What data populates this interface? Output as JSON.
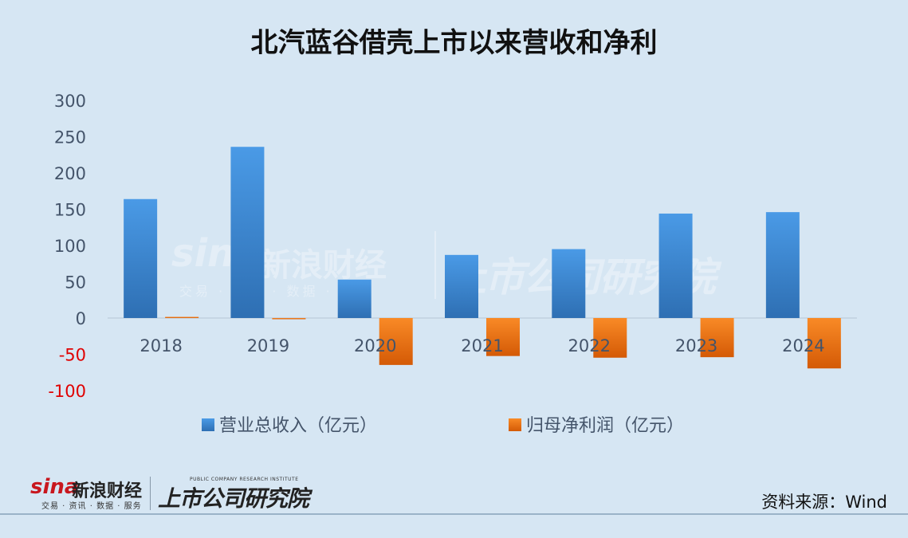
{
  "title": "北汽蓝谷借壳上市以来营收和净利",
  "source_label": "资料来源：Wind",
  "logos": {
    "sina_word": "sina",
    "sina_cn": "新浪财经",
    "sina_sub": "交易 · 资讯 · 数据 · 服务",
    "ssgs_en": "PUBLIC COMPANY RESEARCH INSTITUTE",
    "ssgs_cn": "上市公司研究院"
  },
  "colors": {
    "revenue": "#3f8fd8",
    "profit": "#f07a18",
    "negative_tick": "#e00000",
    "axis_tick": "#44546a"
  },
  "chart_data": {
    "type": "bar",
    "title": "北汽蓝谷借壳上市以来营收和净利",
    "categories": [
      "2018",
      "2019",
      "2020",
      "2021",
      "2022",
      "2023",
      "2024"
    ],
    "series": [
      {
        "name": "营业总收入（亿元）",
        "values": [
          164,
          236,
          53,
          87,
          95,
          144,
          146
        ]
      },
      {
        "name": "归母净利润（亿元）",
        "values": [
          1.6,
          -0.6,
          -64.7,
          -52.4,
          -54.7,
          -54.0,
          -69.5
        ]
      }
    ],
    "yticks": [
      "300",
      "250",
      "200",
      "150",
      "100",
      "50",
      "0",
      "-50",
      "-100"
    ],
    "ylim": [
      -100,
      300
    ],
    "grid": false,
    "legend_position": "bottom"
  }
}
